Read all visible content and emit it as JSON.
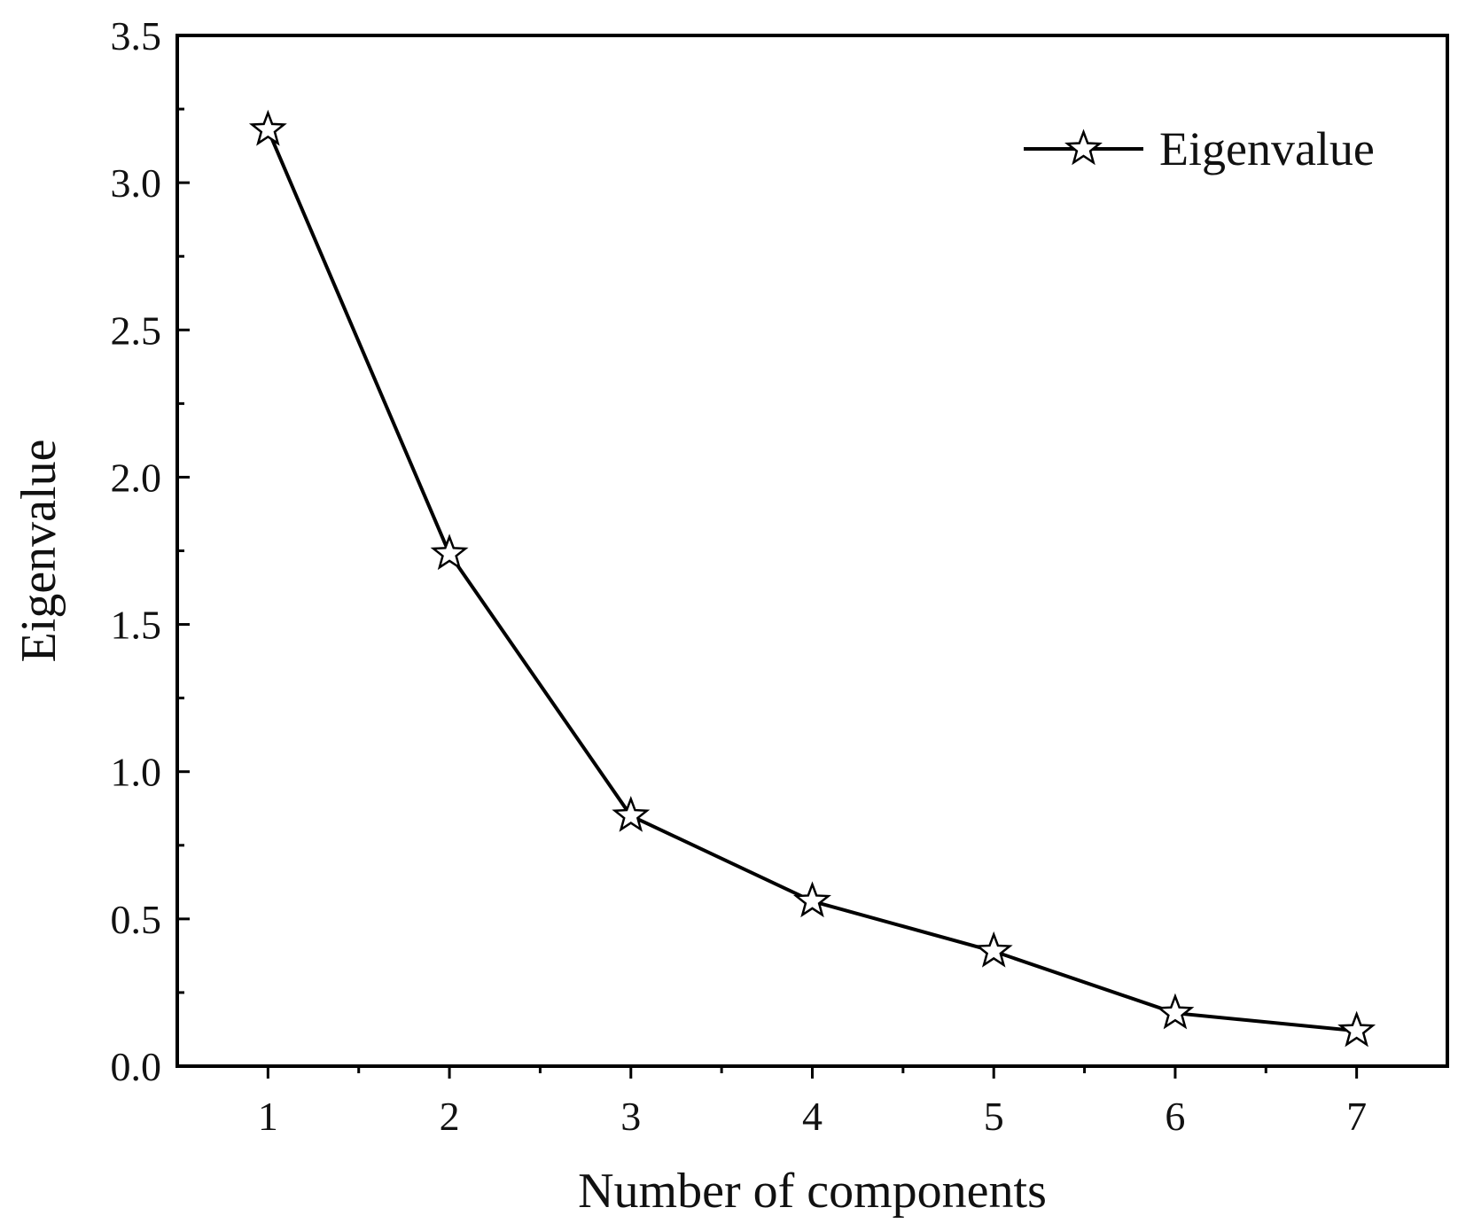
{
  "chart_data": {
    "type": "line",
    "title": "",
    "xlabel": "Number of components",
    "ylabel": "Eigenvalue",
    "x": [
      1,
      2,
      3,
      4,
      5,
      6,
      7
    ],
    "series": [
      {
        "name": "Eigenvalue",
        "values": [
          3.18,
          1.74,
          0.85,
          0.56,
          0.39,
          0.18,
          0.12
        ],
        "marker": "star-open",
        "color": "#000000"
      }
    ],
    "xlim": [
      0.5,
      7.5
    ],
    "ylim": [
      0.0,
      3.5
    ],
    "x_ticks": [
      "1",
      "2",
      "3",
      "4",
      "5",
      "6",
      "7"
    ],
    "y_ticks": [
      "0.0",
      "0.5",
      "1.0",
      "1.5",
      "2.0",
      "2.5",
      "3.0",
      "3.5"
    ],
    "y_tick_values": [
      0.0,
      0.5,
      1.0,
      1.5,
      2.0,
      2.5,
      3.0,
      3.5
    ],
    "grid": false,
    "legend_position": "top-right"
  }
}
